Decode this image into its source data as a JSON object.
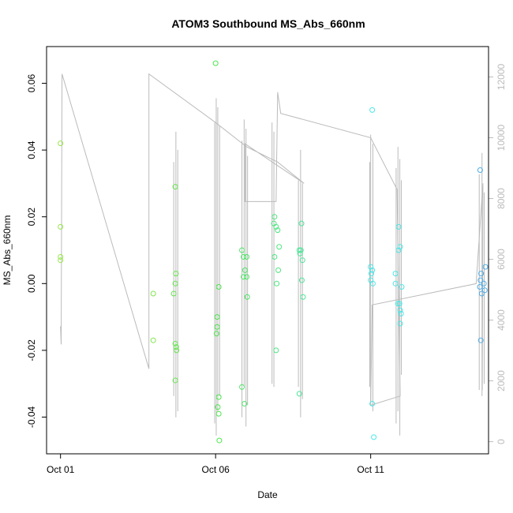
{
  "chart_data": {
    "type": "scatter",
    "title": "ATOM3 Southbound MS_Abs_660nm",
    "xlabel": "Date",
    "ylabel": "MS_Abs_660nm",
    "x_ticks": [
      {
        "label": "Oct 01",
        "value": 1.0
      },
      {
        "label": "Oct 06",
        "value": 6.0
      },
      {
        "label": "Oct 11",
        "value": 11.0
      }
    ],
    "xlim": [
      0.55,
      14.8
    ],
    "ylim": [
      -0.051,
      0.071
    ],
    "y_ticks": [
      -0.04,
      -0.02,
      0.0,
      0.02,
      0.04,
      0.06
    ],
    "y_tick_labels": [
      "-0.04",
      "-0.02",
      "0.00",
      "0.02",
      "0.04",
      "0.06"
    ],
    "right_axis": {
      "ticks": [
        0,
        2000,
        4000,
        6000,
        8000,
        10000,
        12000
      ],
      "tick_labels": [
        "0",
        "2000",
        "4000",
        "6000",
        "8000",
        "10000",
        "12000"
      ],
      "range": [
        -400,
        13000
      ],
      "color": "#bbbbbb"
    },
    "points": [
      {
        "x": 1.0,
        "y": 0.042,
        "color": "#99e64d"
      },
      {
        "x": 1.0,
        "y": 0.017,
        "color": "#99e64d"
      },
      {
        "x": 1.0,
        "y": 0.008,
        "color": "#99e64d"
      },
      {
        "x": 1.0,
        "y": 0.007,
        "color": "#99e64d"
      },
      {
        "x": 3.99,
        "y": -0.003,
        "color": "#80e64d"
      },
      {
        "x": 3.99,
        "y": -0.017,
        "color": "#80e64d"
      },
      {
        "x": 4.7,
        "y": 0.029,
        "color": "#66e64d"
      },
      {
        "x": 4.72,
        "y": 0.003,
        "color": "#66e64d"
      },
      {
        "x": 4.7,
        "y": 0.0,
        "color": "#66e64d"
      },
      {
        "x": 4.65,
        "y": -0.003,
        "color": "#66e64d"
      },
      {
        "x": 4.7,
        "y": -0.018,
        "color": "#66e64d"
      },
      {
        "x": 4.73,
        "y": -0.019,
        "color": "#66e64d"
      },
      {
        "x": 4.74,
        "y": -0.02,
        "color": "#66e64d"
      },
      {
        "x": 4.7,
        "y": -0.029,
        "color": "#66e64d"
      },
      {
        "x": 6.0,
        "y": 0.066,
        "color": "#4de64d"
      },
      {
        "x": 6.1,
        "y": -0.001,
        "color": "#4de64d"
      },
      {
        "x": 6.05,
        "y": -0.01,
        "color": "#4de64d"
      },
      {
        "x": 6.05,
        "y": -0.013,
        "color": "#4de64d"
      },
      {
        "x": 6.03,
        "y": -0.015,
        "color": "#4de64d"
      },
      {
        "x": 6.1,
        "y": -0.034,
        "color": "#4de64d"
      },
      {
        "x": 6.07,
        "y": -0.037,
        "color": "#4de64d"
      },
      {
        "x": 6.1,
        "y": -0.039,
        "color": "#4de64d"
      },
      {
        "x": 6.12,
        "y": -0.047,
        "color": "#4de64d"
      },
      {
        "x": 6.85,
        "y": 0.01,
        "color": "#4de666"
      },
      {
        "x": 6.9,
        "y": 0.008,
        "color": "#4de666"
      },
      {
        "x": 7.0,
        "y": 0.008,
        "color": "#4de666"
      },
      {
        "x": 6.95,
        "y": 0.004,
        "color": "#4de666"
      },
      {
        "x": 6.9,
        "y": 0.002,
        "color": "#4de666"
      },
      {
        "x": 7.0,
        "y": 0.002,
        "color": "#4de666"
      },
      {
        "x": 7.02,
        "y": -0.004,
        "color": "#4de666"
      },
      {
        "x": 6.85,
        "y": -0.031,
        "color": "#4de666"
      },
      {
        "x": 6.93,
        "y": -0.036,
        "color": "#4de666"
      },
      {
        "x": 7.9,
        "y": 0.02,
        "color": "#4de680"
      },
      {
        "x": 7.88,
        "y": 0.018,
        "color": "#4de680"
      },
      {
        "x": 7.95,
        "y": 0.017,
        "color": "#4de680"
      },
      {
        "x": 8.0,
        "y": 0.016,
        "color": "#4de680"
      },
      {
        "x": 8.05,
        "y": 0.011,
        "color": "#4de680"
      },
      {
        "x": 7.9,
        "y": 0.008,
        "color": "#4de680"
      },
      {
        "x": 8.02,
        "y": 0.004,
        "color": "#4de680"
      },
      {
        "x": 7.97,
        "y": 0.0,
        "color": "#4de680"
      },
      {
        "x": 7.95,
        "y": -0.02,
        "color": "#4de680"
      },
      {
        "x": 8.77,
        "y": 0.018,
        "color": "#4de699"
      },
      {
        "x": 8.7,
        "y": 0.01,
        "color": "#4de699"
      },
      {
        "x": 8.75,
        "y": 0.01,
        "color": "#4de699"
      },
      {
        "x": 8.72,
        "y": 0.009,
        "color": "#4de699"
      },
      {
        "x": 8.8,
        "y": 0.007,
        "color": "#4de699"
      },
      {
        "x": 8.78,
        "y": 0.001,
        "color": "#4de699"
      },
      {
        "x": 8.82,
        "y": -0.004,
        "color": "#4de699"
      },
      {
        "x": 8.7,
        "y": -0.033,
        "color": "#4de699"
      },
      {
        "x": 11.05,
        "y": 0.052,
        "color": "#4de6e6"
      },
      {
        "x": 11.0,
        "y": 0.005,
        "color": "#4de6e6"
      },
      {
        "x": 11.05,
        "y": 0.004,
        "color": "#4de6e6"
      },
      {
        "x": 11.02,
        "y": 0.003,
        "color": "#4de6e6"
      },
      {
        "x": 11.0,
        "y": 0.001,
        "color": "#4de6e6"
      },
      {
        "x": 11.07,
        "y": 0.0,
        "color": "#4de6e6"
      },
      {
        "x": 11.05,
        "y": -0.036,
        "color": "#4de6e6"
      },
      {
        "x": 11.1,
        "y": -0.046,
        "color": "#4de6e6"
      },
      {
        "x": 11.9,
        "y": 0.017,
        "color": "#4de6e6"
      },
      {
        "x": 11.95,
        "y": 0.011,
        "color": "#4de6e6"
      },
      {
        "x": 11.9,
        "y": 0.01,
        "color": "#4de6e6"
      },
      {
        "x": 11.8,
        "y": 0.003,
        "color": "#4de6e6"
      },
      {
        "x": 11.8,
        "y": 0.0,
        "color": "#4de6e6"
      },
      {
        "x": 12.0,
        "y": -0.001,
        "color": "#4de6e6"
      },
      {
        "x": 11.88,
        "y": -0.006,
        "color": "#4de6e6"
      },
      {
        "x": 11.93,
        "y": -0.006,
        "color": "#4de6e6"
      },
      {
        "x": 11.95,
        "y": -0.008,
        "color": "#4de6e6"
      },
      {
        "x": 11.98,
        "y": -0.009,
        "color": "#4de6e6"
      },
      {
        "x": 11.95,
        "y": -0.012,
        "color": "#4de6e6"
      },
      {
        "x": 14.53,
        "y": 0.034,
        "color": "#4dace6"
      },
      {
        "x": 14.7,
        "y": 0.005,
        "color": "#4dace6"
      },
      {
        "x": 14.56,
        "y": 0.003,
        "color": "#4dace6"
      },
      {
        "x": 14.54,
        "y": 0.001,
        "color": "#4dace6"
      },
      {
        "x": 14.65,
        "y": 0.0,
        "color": "#4dace6"
      },
      {
        "x": 14.52,
        "y": -0.001,
        "color": "#4dace6"
      },
      {
        "x": 14.68,
        "y": -0.002,
        "color": "#4dace6"
      },
      {
        "x": 14.58,
        "y": -0.003,
        "color": "#4dace6"
      },
      {
        "x": 14.55,
        "y": -0.017,
        "color": "#4dace6"
      }
    ],
    "altitude_series": {
      "color": "#bbbbbb",
      "vertices": [
        [
          1.0,
          3800
        ],
        [
          1.02,
          3200
        ],
        [
          1.05,
          12100
        ],
        [
          3.85,
          2400
        ],
        [
          3.85,
          8200
        ],
        [
          3.85,
          12100
        ],
        [
          6.0,
          10500
        ],
        [
          7.0,
          9700
        ],
        [
          8.0,
          9200
        ],
        [
          8.85,
          8500
        ],
        [
          6.95,
          9800
        ],
        [
          6.95,
          7900
        ],
        [
          7.95,
          7900
        ],
        [
          8.0,
          11500
        ],
        [
          8.1,
          10800
        ],
        [
          11.0,
          10000
        ],
        [
          11.85,
          8300
        ],
        [
          11.95,
          1500
        ],
        [
          11.0,
          1200
        ],
        [
          11.05,
          4500
        ],
        [
          14.4,
          5200
        ],
        [
          14.62,
          8500
        ],
        [
          14.6,
          1700
        ]
      ],
      "spikes": [
        [
          4.65,
          1500,
          9200
        ],
        [
          4.72,
          800,
          10200
        ],
        [
          4.78,
          1000,
          9600
        ],
        [
          5.97,
          600,
          10500
        ],
        [
          6.02,
          200,
          11300
        ],
        [
          6.07,
          1000,
          11000
        ],
        [
          6.13,
          1500,
          10400
        ],
        [
          6.85,
          800,
          9900
        ],
        [
          6.92,
          1800,
          10600
        ],
        [
          6.98,
          500,
          10300
        ],
        [
          7.03,
          1200,
          9400
        ],
        [
          7.82,
          1900,
          10500
        ],
        [
          7.88,
          1800,
          10200
        ],
        [
          8.67,
          1800,
          8600
        ],
        [
          8.74,
          800,
          9600
        ],
        [
          8.8,
          1400,
          8500
        ],
        [
          10.97,
          1800,
          9200
        ],
        [
          11.0,
          1300,
          10100
        ],
        [
          11.07,
          1000,
          9800
        ],
        [
          11.82,
          600,
          9000
        ],
        [
          11.88,
          1000,
          9700
        ],
        [
          11.94,
          200,
          9300
        ],
        [
          11.99,
          2200,
          8600
        ],
        [
          14.5,
          1700,
          8800
        ],
        [
          14.59,
          1500,
          9500
        ],
        [
          14.66,
          1900,
          8200
        ]
      ]
    },
    "grid": false,
    "legend": "none"
  }
}
